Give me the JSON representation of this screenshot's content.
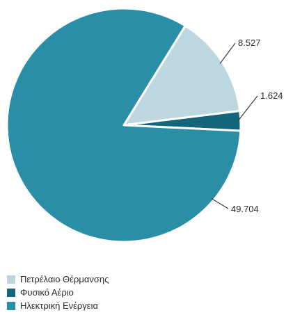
{
  "chart_data": {
    "type": "pie",
    "title": "",
    "slices": [
      {
        "label": "Πετρέλαιο Θέρμανσης",
        "value": 8527,
        "display": "8.527",
        "color": "#bcd7e0"
      },
      {
        "label": "Φυσικό Αέριο",
        "value": 1624,
        "display": "1.624",
        "color": "#14657a"
      },
      {
        "label": "Ηλεκτρική Ενέργεια",
        "value": 49704,
        "display": "49.704",
        "color": "#2a8fa6"
      }
    ],
    "legend_position": "bottom-left"
  }
}
